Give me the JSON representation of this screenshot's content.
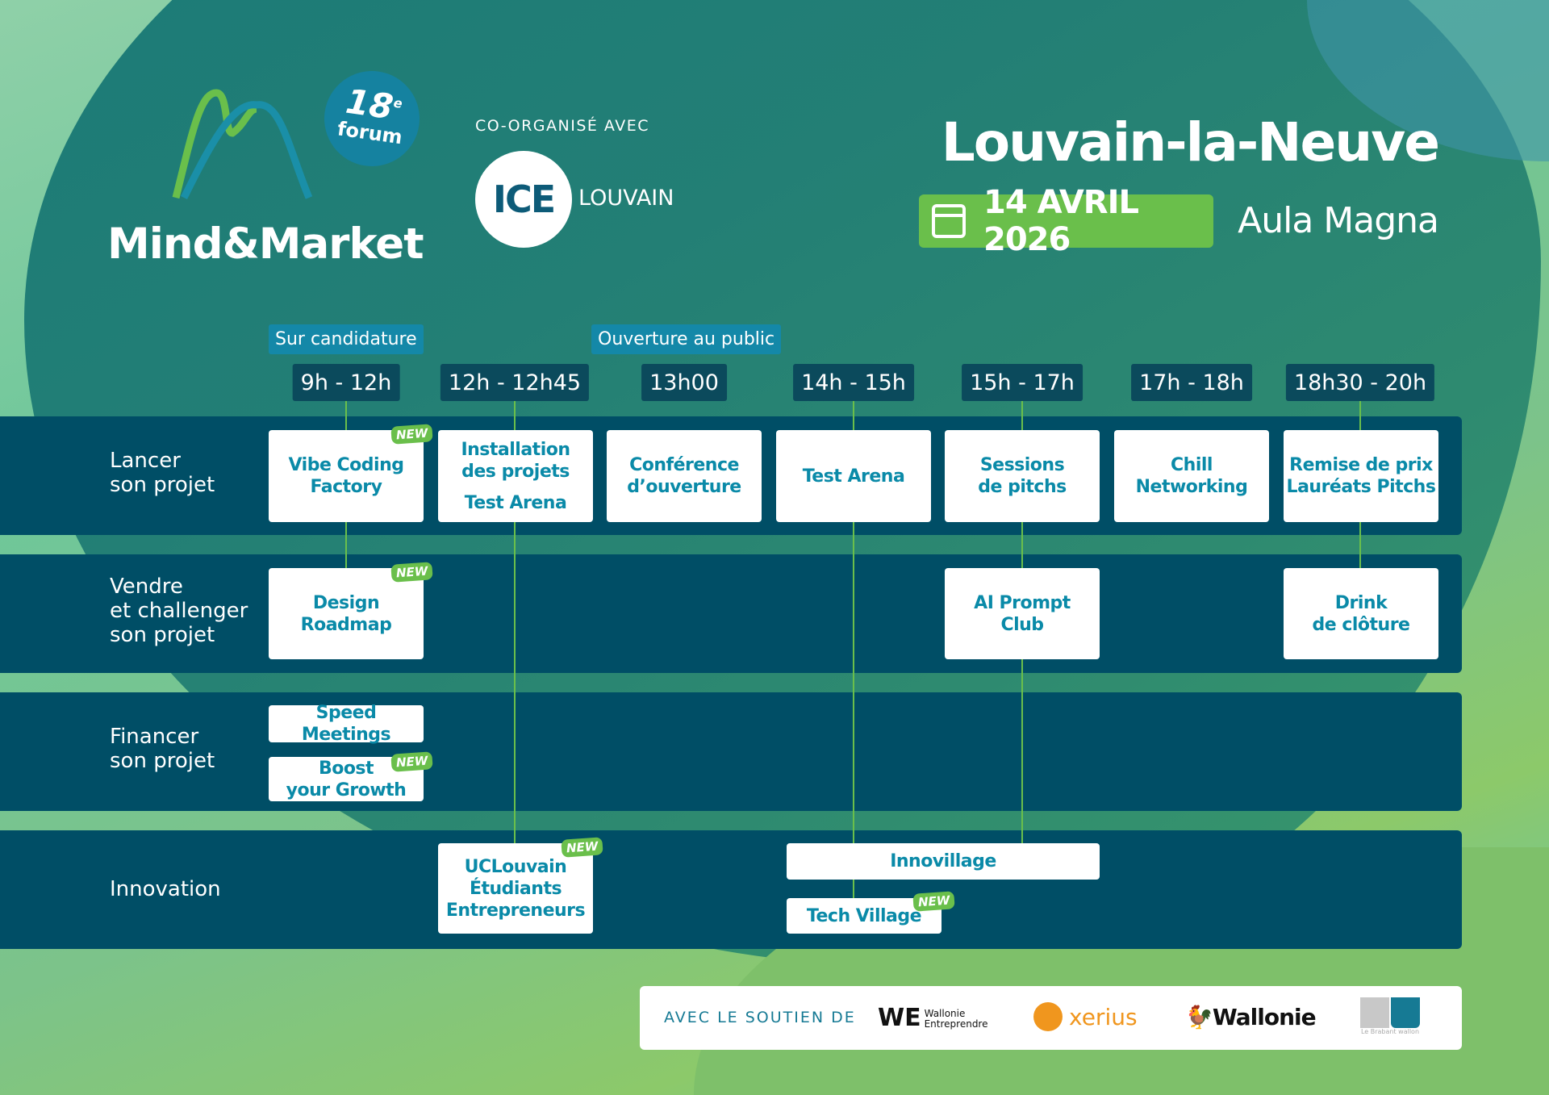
{
  "header": {
    "brand": "Mind&Market",
    "edition": "18",
    "edition_suffix": "e",
    "edition_word": "forum",
    "coorganized_label": "CO-ORGANISÉ AVEC",
    "partner_logo": "ICE",
    "partner_name": "LOUVAIN",
    "city": "Louvain-la-Neuve",
    "date": "14 AVRIL 2026",
    "venue": "Aula Magna",
    "date_icon": "calendar-icon"
  },
  "columns": [
    {
      "time": "9h - 12h",
      "tag": "Sur candidature"
    },
    {
      "time": "12h - 12h45"
    },
    {
      "time": "13h00",
      "tag": "Ouverture au public"
    },
    {
      "time": "14h - 15h"
    },
    {
      "time": "15h - 17h"
    },
    {
      "time": "17h - 18h"
    },
    {
      "time": "18h30 - 20h"
    }
  ],
  "rows": [
    {
      "label": [
        "Lancer",
        "son projet"
      ]
    },
    {
      "label": [
        "Vendre",
        "et challenger",
        "son projet"
      ]
    },
    {
      "label": [
        "Financer",
        "son projet"
      ]
    },
    {
      "label": [
        "Innovation"
      ]
    }
  ],
  "cards": [
    {
      "lines": [
        "Vibe Coding",
        "Factory"
      ],
      "new": "NEW"
    },
    {
      "lines": [
        "Installation",
        "des projets",
        "",
        "Test Arena"
      ]
    },
    {
      "lines": [
        "Conférence",
        "d’ouverture"
      ]
    },
    {
      "lines": [
        "Test Arena"
      ]
    },
    {
      "lines": [
        "Sessions",
        "de pitchs"
      ]
    },
    {
      "lines": [
        "Chill",
        "Networking"
      ]
    },
    {
      "lines": [
        "Remise de prix",
        "Lauréats Pitchs"
      ]
    },
    {
      "lines": [
        "Design",
        "Roadmap"
      ],
      "new": "NEW"
    },
    {
      "lines": [
        "AI Prompt",
        "Club"
      ]
    },
    {
      "lines": [
        "Drink",
        "de clôture"
      ]
    },
    {
      "lines": [
        "Speed Meetings"
      ]
    },
    {
      "lines": [
        "Boost",
        "your Growth"
      ],
      "new": "NEW"
    },
    {
      "lines": [
        "UCLouvain",
        "Étudiants",
        "Entrepreneurs"
      ],
      "new": "NEW"
    },
    {
      "lines": [
        "Innovillage"
      ]
    },
    {
      "lines": [
        "Tech Village"
      ],
      "new": "NEW"
    }
  ],
  "footer": {
    "label": "AVEC LE SOUTIEN DE",
    "sponsors": [
      {
        "name": "WE",
        "sub1": "Wallonie",
        "sub2": "Entreprendre"
      },
      {
        "name": "xerius"
      },
      {
        "name": "Wallonie"
      },
      {
        "name": "BW",
        "sub1": "Le Brabant wallon"
      }
    ]
  },
  "colors": {
    "band": "#004e66",
    "accent_green": "#6abf4b",
    "card_text": "#0a8aa8",
    "pill": "#0b4a5c",
    "tag": "#1488a8"
  }
}
